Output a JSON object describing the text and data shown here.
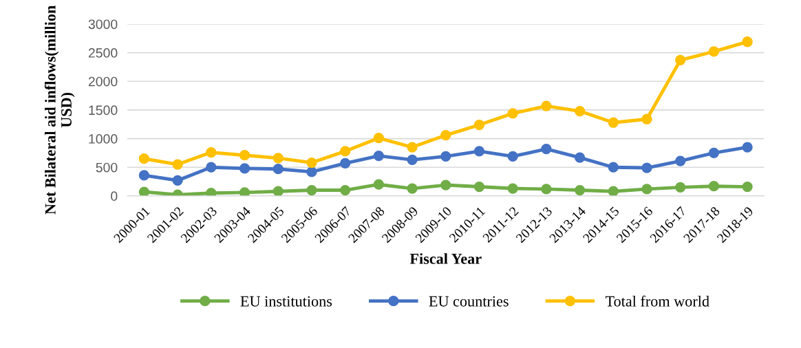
{
  "chart_data": {
    "type": "line",
    "xlabel": "Fiscal Year",
    "ylabel": "Net Bilateral aid inflows(million\nUSD)",
    "categories": [
      "2000-01",
      "2001-02",
      "2002-03",
      "2003-04",
      "2004-05",
      "2005-06",
      "2006-07",
      "2007-08",
      "2008-09",
      "2009-10",
      "2010-11",
      "2011-12",
      "2012-13",
      "2013-14",
      "2014-15",
      "2015-16",
      "2016-17",
      "2017-18",
      "2018-19"
    ],
    "series": [
      {
        "name": "EU institutions",
        "color": "#70ad47",
        "values": [
          70,
          20,
          50,
          60,
          80,
          100,
          100,
          200,
          130,
          190,
          160,
          130,
          120,
          100,
          80,
          120,
          150,
          170,
          160
        ]
      },
      {
        "name": "EU countries",
        "color": "#4472c4",
        "values": [
          360,
          270,
          500,
          480,
          470,
          420,
          570,
          700,
          630,
          690,
          780,
          690,
          820,
          670,
          500,
          490,
          610,
          750,
          850
        ]
      },
      {
        "name": "Total from world",
        "color": "#ffc000",
        "values": [
          650,
          550,
          760,
          710,
          660,
          580,
          780,
          1010,
          850,
          1060,
          1240,
          1440,
          1570,
          1480,
          1280,
          1340,
          2370,
          2520,
          2690
        ]
      }
    ],
    "ylim": [
      0,
      3000
    ],
    "yticks": [
      0,
      500,
      1000,
      1500,
      2000,
      2500,
      3000
    ],
    "grid": "y",
    "legend": "bottom",
    "marker": "circle",
    "line_style": "solid"
  }
}
